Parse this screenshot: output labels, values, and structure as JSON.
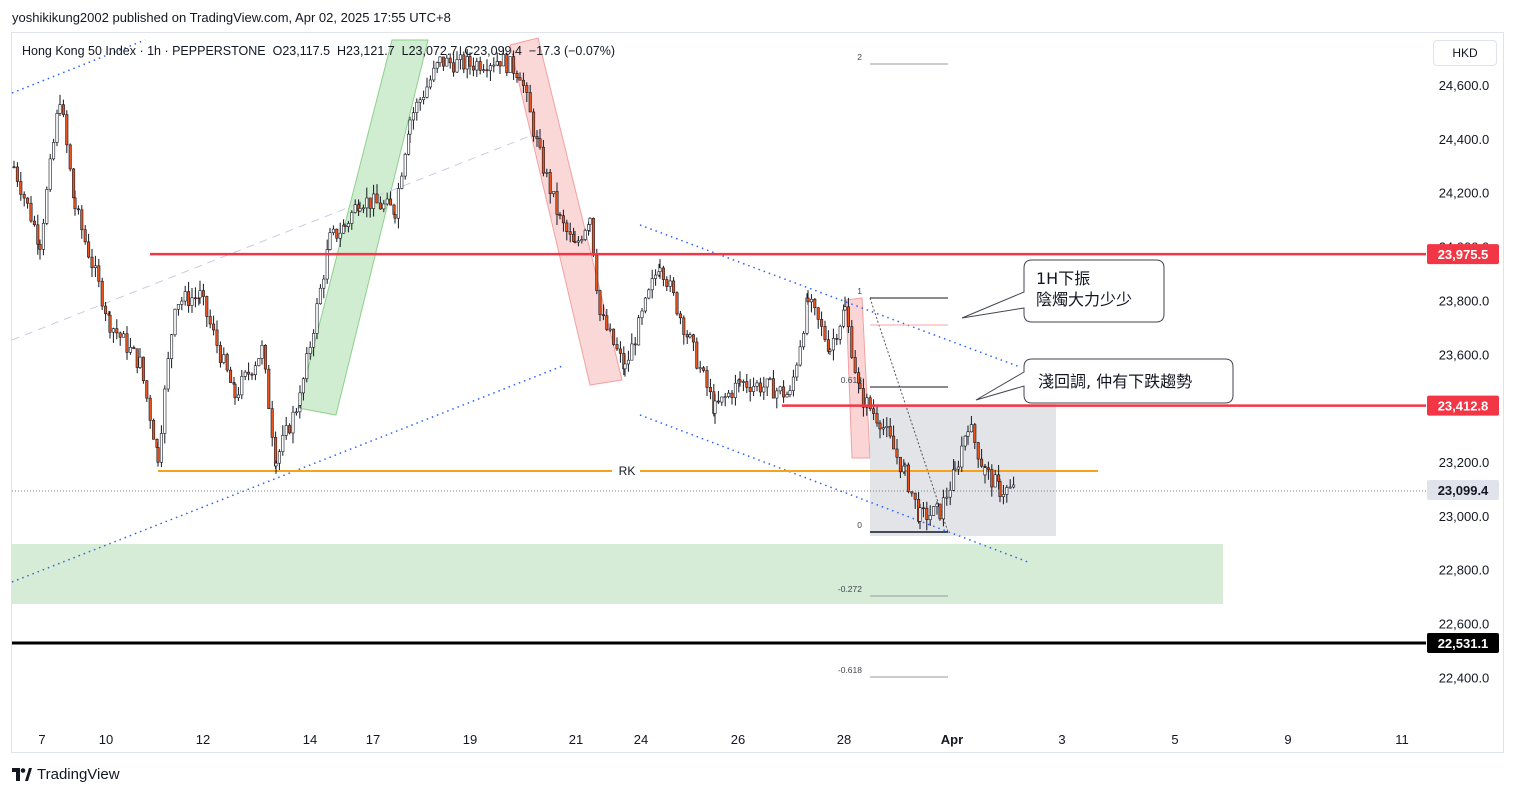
{
  "publisher_line": "yoshikikung2002 published on TradingView.com, Apr 02, 2025 17:55 UTC+8",
  "legend": {
    "symbol": "Hong Kong 50 Index · 1h · PEPPERSTONE",
    "open": "O23,117.5",
    "high": "H23,121.7",
    "low": "L23,072.7",
    "close": "C23,099.4",
    "change": "−17.3 (−0.07%)"
  },
  "currency": "HKD",
  "brand": "TradingView",
  "chart_data": {
    "type": "candlestick",
    "y_axis": {
      "min": 22320,
      "max": 24780,
      "ticks": [
        "24,600.0",
        "24,400.0",
        "24,200.0",
        "24,000.0",
        "23,800.0",
        "23,600.0",
        "23,400.0",
        "23,200.0",
        "23,000.0",
        "22,800.0",
        "22,600.0",
        "22,400.0"
      ]
    },
    "x_axis": {
      "ticks": [
        "7",
        "10",
        "12",
        "14",
        "17",
        "19",
        "21",
        "24",
        "26",
        "28",
        "Apr",
        "3",
        "5",
        "9",
        "11"
      ]
    },
    "current_price": {
      "label": "23,099.4",
      "value": 23099.4
    },
    "horizontal_levels": [
      {
        "value": 23975.5,
        "label": "23,975.5",
        "color": "#f23645"
      },
      {
        "value": 23412.8,
        "label": "23,412.8",
        "color": "#f23645"
      },
      {
        "value": 22531.1,
        "label": "22,531.1",
        "color": "#000000"
      }
    ],
    "rk_line": {
      "label": "RK",
      "value": 23170,
      "color": "#f7a21b"
    },
    "fib_levels": [
      {
        "label": "2",
        "value": 24720
      },
      {
        "label": "1",
        "value": 23820
      },
      {
        "label": "0.618",
        "value": 23480
      },
      {
        "label": "0",
        "value": 22930
      },
      {
        "label": "-0.272",
        "value": 22690
      },
      {
        "label": "-0.618",
        "value": 22380
      }
    ],
    "demand_zone": {
      "from": 22680,
      "to": 22900,
      "color": "#d6ecd6"
    },
    "callouts": [
      {
        "line1": "1H下振",
        "line2": "陰燭大力少少"
      },
      {
        "line1": "淺回調, 仲有下跌趨勢"
      }
    ],
    "colors": {
      "up": "#131722",
      "down": "#e8541d",
      "trend": "#2962ff",
      "green_box": "#8bd18b",
      "red_box": "#f6a5a5"
    }
  }
}
